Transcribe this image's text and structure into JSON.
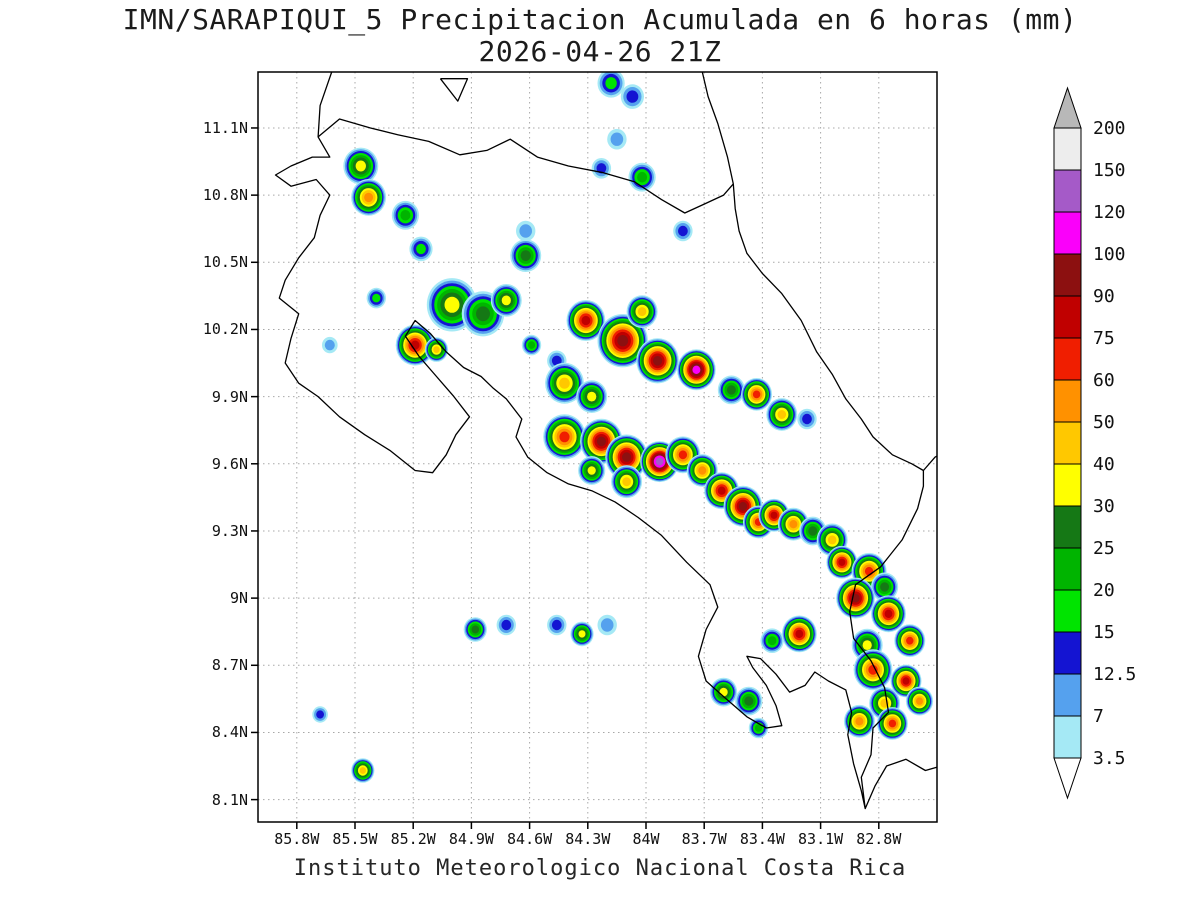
{
  "title": {
    "line1": "IMN/SARAPIQUI_5 Precipitacion Acumulada en 6 horas (mm)",
    "line2": "2026-04-26 21Z"
  },
  "caption": "Instituto Meteorologico Nacional Costa Rica",
  "axes": {
    "lat_ticks": [
      {
        "label": "11.1N",
        "value": 11.1
      },
      {
        "label": "10.8N",
        "value": 10.8
      },
      {
        "label": "10.5N",
        "value": 10.5
      },
      {
        "label": "10.2N",
        "value": 10.2
      },
      {
        "label": "9.9N",
        "value": 9.9
      },
      {
        "label": "9.6N",
        "value": 9.6
      },
      {
        "label": "9.3N",
        "value": 9.3
      },
      {
        "label": "9N",
        "value": 9.0
      },
      {
        "label": "8.7N",
        "value": 8.7
      },
      {
        "label": "8.4N",
        "value": 8.4
      },
      {
        "label": "8.1N",
        "value": 8.1
      }
    ],
    "lon_ticks": [
      {
        "label": "85.8W",
        "value": -85.8
      },
      {
        "label": "85.5W",
        "value": -85.5
      },
      {
        "label": "85.2W",
        "value": -85.2
      },
      {
        "label": "84.9W",
        "value": -84.9
      },
      {
        "label": "84.6W",
        "value": -84.6
      },
      {
        "label": "84.3W",
        "value": -84.3
      },
      {
        "label": "84W",
        "value": -84.0
      },
      {
        "label": "83.7W",
        "value": -83.7
      },
      {
        "label": "83.4W",
        "value": -83.4
      },
      {
        "label": "83.1W",
        "value": -83.1
      },
      {
        "label": "82.8W",
        "value": -82.8
      }
    ]
  },
  "colorbar": {
    "tick_labels": [
      "200",
      "150",
      "120",
      "100",
      "90",
      "75",
      "60",
      "50",
      "40",
      "30",
      "25",
      "20",
      "15",
      "12.5",
      "7",
      "3.5"
    ]
  },
  "chart_data": {
    "type": "heatmap",
    "title": "IMN/SARAPIQUI_5 Precipitacion Acumulada en 6 horas (mm)",
    "valid_time": "2026-04-26 21Z",
    "units": "mm",
    "source": "Instituto Meteorologico Nacional Costa Rica",
    "lon_range": [
      -86.0,
      -82.5
    ],
    "lat_range": [
      8.0,
      11.35
    ],
    "grid": true,
    "legend_position": "right",
    "levels": [
      3.5,
      7,
      12.5,
      15,
      20,
      25,
      30,
      40,
      50,
      60,
      75,
      90,
      100,
      120,
      150,
      200
    ],
    "colors": [
      "#a5e9f5",
      "#55a1ee",
      "#1414d2",
      "#00e400",
      "#00b400",
      "#157815",
      "#ffff00",
      "#ffc800",
      "#ff9100",
      "#f01e00",
      "#c00000",
      "#8c1010",
      "#fa00fa",
      "#a55ac8",
      "#ededed"
    ],
    "under_color": "#ffffff",
    "over_color": "#b8b8b8",
    "cells_format": [
      "lon",
      "lat",
      "peak_mm",
      "radius_deg"
    ],
    "cells": [
      [
        -84.18,
        11.3,
        17,
        0.07
      ],
      [
        -84.07,
        11.24,
        13,
        0.06
      ],
      [
        -84.15,
        11.05,
        8,
        0.05
      ],
      [
        -84.23,
        10.92,
        13,
        0.05
      ],
      [
        -84.02,
        10.88,
        22,
        0.07
      ],
      [
        -83.81,
        10.64,
        13,
        0.05
      ],
      [
        -85.47,
        10.93,
        33,
        0.09
      ],
      [
        -85.43,
        10.79,
        55,
        0.09
      ],
      [
        -85.24,
        10.71,
        22,
        0.07
      ],
      [
        -85.16,
        10.56,
        17,
        0.06
      ],
      [
        -84.62,
        10.64,
        8,
        0.05
      ],
      [
        -84.62,
        10.53,
        27,
        0.08
      ],
      [
        -85.39,
        10.34,
        17,
        0.05
      ],
      [
        -85.63,
        10.13,
        8,
        0.04
      ],
      [
        -85.19,
        10.13,
        80,
        0.1
      ],
      [
        -85.08,
        10.11,
        45,
        0.06
      ],
      [
        -85.0,
        10.31,
        33,
        0.13
      ],
      [
        -84.84,
        10.27,
        27,
        0.11
      ],
      [
        -84.72,
        10.33,
        33,
        0.08
      ],
      [
        -84.31,
        10.24,
        80,
        0.1
      ],
      [
        -84.12,
        10.15,
        95,
        0.13
      ],
      [
        -84.02,
        10.28,
        45,
        0.08
      ],
      [
        -84.59,
        10.13,
        22,
        0.05
      ],
      [
        -84.46,
        10.06,
        13,
        0.05
      ],
      [
        -84.42,
        9.96,
        45,
        0.1
      ],
      [
        -84.28,
        9.9,
        33,
        0.08
      ],
      [
        -83.94,
        10.06,
        95,
        0.11
      ],
      [
        -83.74,
        10.02,
        110,
        0.1
      ],
      [
        -83.56,
        9.93,
        27,
        0.07
      ],
      [
        -83.43,
        9.91,
        65,
        0.08
      ],
      [
        -83.3,
        9.82,
        45,
        0.08
      ],
      [
        -83.17,
        9.8,
        13,
        0.05
      ],
      [
        -84.42,
        9.72,
        65,
        0.11
      ],
      [
        -84.23,
        9.7,
        95,
        0.11
      ],
      [
        -84.1,
        9.63,
        95,
        0.11
      ],
      [
        -83.93,
        9.61,
        130,
        0.1
      ],
      [
        -83.81,
        9.64,
        65,
        0.09
      ],
      [
        -83.71,
        9.57,
        55,
        0.08
      ],
      [
        -84.1,
        9.52,
        45,
        0.08
      ],
      [
        -84.28,
        9.57,
        33,
        0.07
      ],
      [
        -83.61,
        9.48,
        80,
        0.09
      ],
      [
        -83.5,
        9.41,
        95,
        0.1
      ],
      [
        -83.42,
        9.34,
        65,
        0.08
      ],
      [
        -83.34,
        9.37,
        80,
        0.08
      ],
      [
        -83.24,
        9.33,
        55,
        0.08
      ],
      [
        -83.14,
        9.3,
        27,
        0.07
      ],
      [
        -83.04,
        9.26,
        45,
        0.08
      ],
      [
        -82.99,
        9.16,
        80,
        0.08
      ],
      [
        -82.85,
        9.12,
        65,
        0.09
      ],
      [
        -82.77,
        9.05,
        27,
        0.07
      ],
      [
        -82.92,
        9.0,
        95,
        0.1
      ],
      [
        -82.75,
        8.93,
        80,
        0.09
      ],
      [
        -82.64,
        8.81,
        65,
        0.08
      ],
      [
        -82.86,
        8.79,
        33,
        0.08
      ],
      [
        -83.21,
        8.84,
        80,
        0.09
      ],
      [
        -83.35,
        8.81,
        22,
        0.06
      ],
      [
        -82.83,
        8.68,
        65,
        0.1
      ],
      [
        -82.66,
        8.63,
        80,
        0.08
      ],
      [
        -82.59,
        8.54,
        55,
        0.07
      ],
      [
        -82.77,
        8.53,
        45,
        0.08
      ],
      [
        -82.9,
        8.45,
        55,
        0.08
      ],
      [
        -82.73,
        8.44,
        65,
        0.08
      ],
      [
        -83.6,
        8.58,
        33,
        0.07
      ],
      [
        -83.47,
        8.54,
        27,
        0.07
      ],
      [
        -83.42,
        8.42,
        22,
        0.05
      ],
      [
        -84.88,
        8.86,
        27,
        0.06
      ],
      [
        -84.72,
        8.88,
        13,
        0.05
      ],
      [
        -84.46,
        8.88,
        13,
        0.05
      ],
      [
        -84.33,
        8.84,
        33,
        0.06
      ],
      [
        -84.2,
        8.88,
        8,
        0.05
      ],
      [
        -85.68,
        8.48,
        13,
        0.04
      ],
      [
        -85.46,
        8.23,
        45,
        0.06
      ]
    ],
    "coastlines": [
      [
        [
          -85.62,
          11.35
        ],
        [
          -85.68,
          11.2
        ],
        [
          -85.69,
          11.06
        ],
        [
          -85.63,
          10.97
        ],
        [
          -85.72,
          10.97
        ],
        [
          -85.83,
          10.93
        ],
        [
          -85.91,
          10.89
        ],
        [
          -85.83,
          10.84
        ],
        [
          -85.7,
          10.87
        ],
        [
          -85.63,
          10.8
        ],
        [
          -85.68,
          10.71
        ],
        [
          -85.71,
          10.61
        ],
        [
          -85.79,
          10.52
        ],
        [
          -85.86,
          10.42
        ],
        [
          -85.89,
          10.34
        ],
        [
          -85.79,
          10.27
        ],
        [
          -85.83,
          10.16
        ],
        [
          -85.86,
          10.05
        ],
        [
          -85.79,
          9.96
        ],
        [
          -85.69,
          9.9
        ],
        [
          -85.58,
          9.81
        ],
        [
          -85.45,
          9.73
        ],
        [
          -85.32,
          9.66
        ],
        [
          -85.19,
          9.57
        ],
        [
          -85.1,
          9.56
        ],
        [
          -85.03,
          9.64
        ],
        [
          -84.98,
          9.73
        ],
        [
          -84.91,
          9.81
        ],
        [
          -84.99,
          9.9
        ],
        [
          -85.08,
          9.99
        ],
        [
          -85.17,
          10.08
        ],
        [
          -85.24,
          10.17
        ],
        [
          -85.19,
          10.24
        ],
        [
          -85.11,
          10.18
        ],
        [
          -85.03,
          10.1
        ],
        [
          -84.94,
          10.03
        ],
        [
          -84.85,
          9.99
        ],
        [
          -84.79,
          9.94
        ],
        [
          -84.72,
          9.89
        ],
        [
          -84.64,
          9.8
        ],
        [
          -84.67,
          9.72
        ],
        [
          -84.61,
          9.63
        ],
        [
          -84.51,
          9.56
        ],
        [
          -84.4,
          9.51
        ],
        [
          -84.28,
          9.48
        ],
        [
          -84.16,
          9.43
        ],
        [
          -84.04,
          9.36
        ],
        [
          -83.92,
          9.28
        ],
        [
          -83.79,
          9.16
        ],
        [
          -83.67,
          9.06
        ],
        [
          -83.63,
          8.96
        ],
        [
          -83.69,
          8.86
        ],
        [
          -83.73,
          8.74
        ],
        [
          -83.69,
          8.63
        ],
        [
          -83.6,
          8.56
        ],
        [
          -83.48,
          8.47
        ],
        [
          -83.38,
          8.42
        ],
        [
          -83.3,
          8.43
        ],
        [
          -83.33,
          8.52
        ],
        [
          -83.38,
          8.61
        ],
        [
          -83.45,
          8.69
        ],
        [
          -83.48,
          8.74
        ],
        [
          -83.41,
          8.73
        ],
        [
          -83.33,
          8.66
        ],
        [
          -83.26,
          8.58
        ],
        [
          -83.18,
          8.61
        ],
        [
          -83.13,
          8.67
        ],
        [
          -83.06,
          8.63
        ],
        [
          -82.97,
          8.59
        ],
        [
          -82.94,
          8.49
        ],
        [
          -82.96,
          8.39
        ],
        [
          -82.93,
          8.26
        ],
        [
          -82.89,
          8.14
        ],
        [
          -82.87,
          8.06
        ],
        [
          -82.89,
          8.2
        ],
        [
          -82.84,
          8.3
        ],
        [
          -82.83,
          8.42
        ],
        [
          -82.75,
          8.49
        ],
        [
          -82.77,
          8.6
        ],
        [
          -82.84,
          8.72
        ],
        [
          -82.93,
          8.82
        ],
        [
          -82.95,
          8.94
        ],
        [
          -82.92,
          9.06
        ],
        [
          -82.79,
          9.14
        ],
        [
          -82.68,
          9.26
        ],
        [
          -82.6,
          9.4
        ],
        [
          -82.57,
          9.5
        ],
        [
          -82.57,
          9.57
        ],
        [
          -82.63,
          9.6
        ],
        [
          -82.73,
          9.64
        ],
        [
          -82.83,
          9.72
        ],
        [
          -82.89,
          9.8
        ],
        [
          -82.97,
          9.89
        ],
        [
          -83.04,
          10.0
        ],
        [
          -83.12,
          10.1
        ],
        [
          -83.2,
          10.24
        ],
        [
          -83.3,
          10.36
        ],
        [
          -83.4,
          10.45
        ],
        [
          -83.48,
          10.54
        ],
        [
          -83.52,
          10.64
        ],
        [
          -83.54,
          10.74
        ],
        [
          -83.55,
          10.85
        ],
        [
          -83.58,
          10.97
        ],
        [
          -83.63,
          11.12
        ],
        [
          -83.68,
          11.24
        ],
        [
          -83.71,
          11.35
        ]
      ],
      [
        [
          -85.69,
          11.06
        ],
        [
          -85.58,
          11.14
        ],
        [
          -85.42,
          11.1
        ],
        [
          -85.28,
          11.07
        ],
        [
          -85.12,
          11.04
        ],
        [
          -84.96,
          10.98
        ],
        [
          -84.82,
          11.0
        ],
        [
          -84.7,
          11.05
        ],
        [
          -84.56,
          10.97
        ],
        [
          -84.4,
          10.93
        ],
        [
          -84.22,
          10.9
        ],
        [
          -84.06,
          10.86
        ],
        [
          -83.92,
          10.78
        ],
        [
          -83.8,
          10.72
        ],
        [
          -83.7,
          10.76
        ],
        [
          -83.6,
          10.8
        ],
        [
          -83.55,
          10.85
        ]
      ],
      [
        [
          -82.57,
          9.57
        ],
        [
          -82.51,
          9.63
        ],
        [
          -82.44,
          9.66
        ]
      ],
      [
        [
          -82.87,
          8.06
        ],
        [
          -82.82,
          8.16
        ],
        [
          -82.76,
          8.25
        ],
        [
          -82.66,
          8.28
        ],
        [
          -82.56,
          8.23
        ],
        [
          -82.44,
          8.26
        ]
      ],
      [
        [
          -85.06,
          11.32
        ],
        [
          -84.97,
          11.22
        ],
        [
          -84.92,
          11.32
        ],
        [
          -85.06,
          11.32
        ]
      ]
    ]
  }
}
